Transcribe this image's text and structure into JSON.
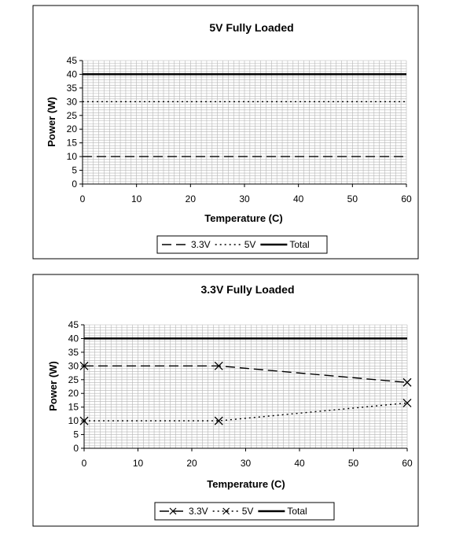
{
  "chart_data": [
    {
      "type": "line",
      "title": "5V Fully Loaded",
      "xlabel": "Temperature (C)",
      "ylabel": "Power (W)",
      "xlim": [
        0,
        60
      ],
      "ylim": [
        0,
        45
      ],
      "x_ticks": [
        "0",
        "10",
        "20",
        "30",
        "40",
        "50",
        "60"
      ],
      "y_ticks": [
        "0",
        "5",
        "10",
        "15",
        "20",
        "25",
        "30",
        "35",
        "40",
        "45"
      ],
      "grid": true,
      "legend_position": "bottom",
      "series": [
        {
          "name": "3.3V",
          "style": "dashed",
          "marker": "none",
          "x": [
            0,
            60
          ],
          "y": [
            10,
            10
          ]
        },
        {
          "name": "5V",
          "style": "dotted",
          "marker": "none",
          "x": [
            0,
            60
          ],
          "y": [
            30,
            30
          ]
        },
        {
          "name": "Total",
          "style": "solid",
          "marker": "none",
          "x": [
            0,
            60
          ],
          "y": [
            40,
            40
          ]
        }
      ]
    },
    {
      "type": "line",
      "title": "3.3V Fully Loaded",
      "xlabel": "Temperature (C)",
      "ylabel": "Power (W)",
      "xlim": [
        0,
        60
      ],
      "ylim": [
        0,
        45
      ],
      "x_ticks": [
        "0",
        "10",
        "20",
        "30",
        "40",
        "50",
        "60"
      ],
      "y_ticks": [
        "0",
        "5",
        "10",
        "15",
        "20",
        "25",
        "30",
        "35",
        "40",
        "45"
      ],
      "grid": true,
      "legend_position": "bottom",
      "series": [
        {
          "name": "3.3V",
          "style": "dashed",
          "marker": "x",
          "x": [
            0,
            25,
            60
          ],
          "y": [
            30,
            30,
            24
          ]
        },
        {
          "name": "5V",
          "style": "dotted",
          "marker": "x",
          "x": [
            0,
            25,
            60
          ],
          "y": [
            10,
            10,
            16.5
          ]
        },
        {
          "name": "Total",
          "style": "solid",
          "marker": "none",
          "x": [
            0,
            60
          ],
          "y": [
            40,
            40
          ]
        }
      ]
    }
  ]
}
